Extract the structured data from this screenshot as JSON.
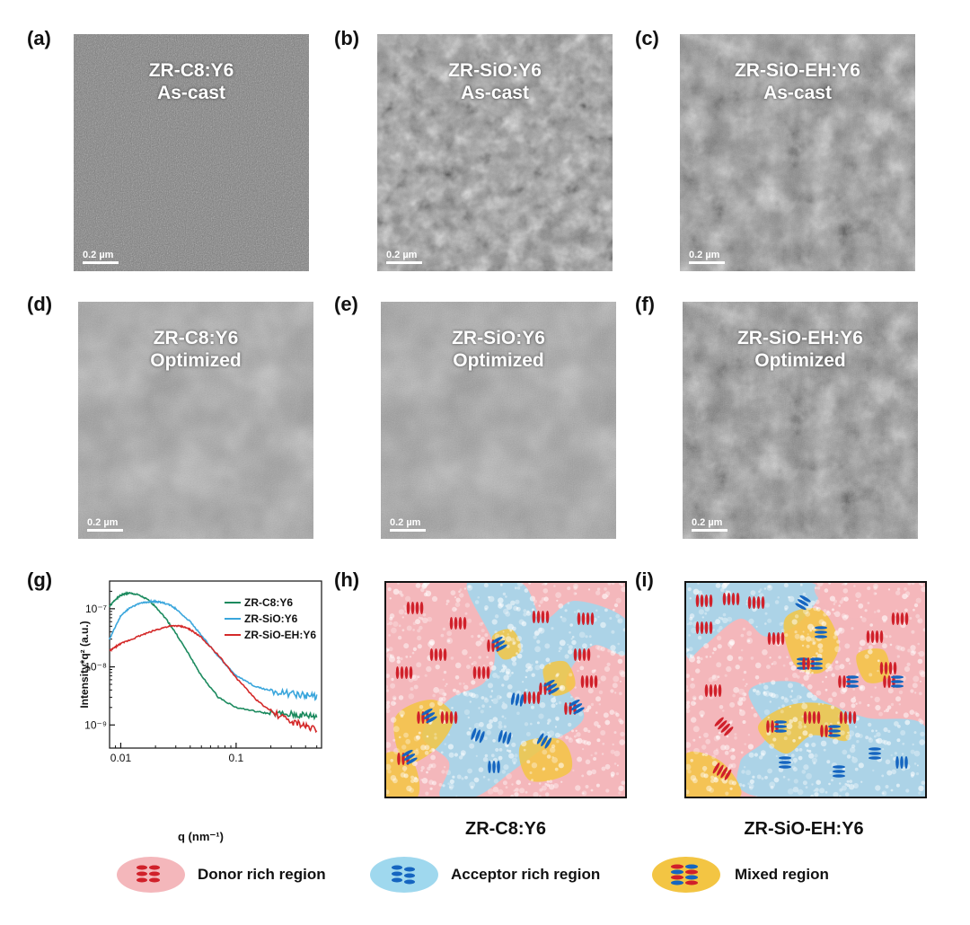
{
  "panel_labels": [
    "(a)",
    "(b)",
    "(c)",
    "(d)",
    "(e)",
    "(f)",
    "(g)",
    "(h)",
    "(i)"
  ],
  "tem_images": [
    {
      "name": "ZR-C8:Y6",
      "state": "As-cast",
      "scale": "0.2 µm"
    },
    {
      "name": "ZR-SiO:Y6",
      "state": "As-cast",
      "scale": "0.2 µm"
    },
    {
      "name": "ZR-SiO-EH:Y6",
      "state": "As-cast",
      "scale": "0.2 µm"
    },
    {
      "name": "ZR-C8:Y6",
      "state": "Optimized",
      "scale": "0.2 µm"
    },
    {
      "name": "ZR-SiO:Y6",
      "state": "Optimized",
      "scale": "0.2 µm"
    },
    {
      "name": "ZR-SiO-EH:Y6",
      "state": "Optimized",
      "scale": "0.2 µm"
    }
  ],
  "chart_data": {
    "type": "line",
    "xlabel": "q (nm⁻¹)",
    "ylabel": "Intensity*q² (a.u.)",
    "x_scale": "log",
    "y_scale": "log",
    "xlim": [
      0.008,
      0.55
    ],
    "ylim": [
      4e-10,
      3e-07
    ],
    "x_ticks": [
      {
        "v": 0.01,
        "label": "0.01"
      },
      {
        "v": 0.1,
        "label": "0.1"
      }
    ],
    "y_ticks": [
      {
        "v": 1e-09,
        "label": "10⁻⁹"
      },
      {
        "v": 1e-08,
        "label": "10⁻⁸"
      },
      {
        "v": 1e-07,
        "label": "10⁻⁷"
      }
    ],
    "legend_position": "top-right",
    "series": [
      {
        "name": "ZR-C8:Y6",
        "color": "#1b8a5e",
        "x": [
          0.008,
          0.009,
          0.01,
          0.011,
          0.012,
          0.014,
          0.017,
          0.02,
          0.025,
          0.03,
          0.04,
          0.05,
          0.07,
          0.1,
          0.15,
          0.2,
          0.3,
          0.4,
          0.5
        ],
        "y": [
          1.1e-07,
          1.45e-07,
          1.7e-07,
          1.82e-07,
          1.85e-07,
          1.75e-07,
          1.45e-07,
          1.1e-07,
          6.5e-08,
          3.8e-08,
          1.5e-08,
          7e-09,
          3e-09,
          2e-09,
          1.7e-09,
          1.55e-09,
          1.5e-09,
          1.45e-09,
          1.4e-09
        ]
      },
      {
        "name": "ZR-SiO:Y6",
        "color": "#3aa6dc",
        "x": [
          0.008,
          0.009,
          0.01,
          0.012,
          0.015,
          0.018,
          0.02,
          0.023,
          0.027,
          0.03,
          0.04,
          0.05,
          0.07,
          0.1,
          0.15,
          0.2,
          0.3,
          0.4,
          0.5
        ],
        "y": [
          3e-08,
          5e-08,
          7.5e-08,
          1.05e-07,
          1.25e-07,
          1.33e-07,
          1.33e-07,
          1.28e-07,
          1.15e-07,
          1e-07,
          6e-08,
          3.5e-08,
          1.5e-08,
          7e-09,
          4.5e-09,
          3.9e-09,
          3.4e-09,
          3.2e-09,
          3.1e-09
        ]
      },
      {
        "name": "ZR-SiO-EH:Y6",
        "color": "#d42a2a",
        "x": [
          0.008,
          0.009,
          0.01,
          0.012,
          0.015,
          0.02,
          0.025,
          0.03,
          0.035,
          0.04,
          0.05,
          0.07,
          0.1,
          0.15,
          0.2,
          0.3,
          0.4,
          0.5
        ],
        "y": [
          1.9e-08,
          2.2e-08,
          2.5e-08,
          2.9e-08,
          3.5e-08,
          4.3e-08,
          4.9e-08,
          5.1e-08,
          4.9e-08,
          4.4e-08,
          3.2e-08,
          1.6e-08,
          6.5e-09,
          2.7e-09,
          1.7e-09,
          1.15e-09,
          9.5e-10,
          8.5e-10
        ]
      }
    ]
  },
  "models": [
    {
      "title": "ZR-C8:Y6"
    },
    {
      "title": "ZR-SiO-EH:Y6"
    }
  ],
  "legend": [
    {
      "label": "Donor rich region"
    },
    {
      "label": "Acceptor rich region"
    },
    {
      "label": "Mixed region"
    }
  ],
  "colors": {
    "donor": "#d0202a",
    "acceptor": "#1565c0",
    "donor_region": "#f4b7bb",
    "acceptor_region": "#9fd8ee",
    "mixed_region": "#f3c543"
  }
}
